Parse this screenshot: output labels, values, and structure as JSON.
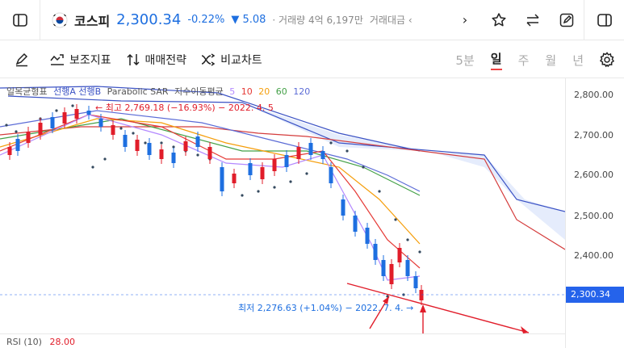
{
  "header": {
    "name": "코스피",
    "price": "2,300.34",
    "change_pct": "-0.22%",
    "change_abs": "▼ 5.08",
    "volume": "· 거래량 4억 6,197만",
    "amount": "거래대금 ‹",
    "more": "›"
  },
  "toolbar": {
    "indicators": "보조지표",
    "strategy": "매매전략",
    "compare": "비교차트"
  },
  "periods": [
    {
      "label": "5분"
    },
    {
      "label": "일",
      "selected": true
    },
    {
      "label": "주"
    },
    {
      "label": "월"
    },
    {
      "label": "년"
    }
  ],
  "legend": {
    "ichimoku": "일목균형표",
    "senkou": "선행A 선행B",
    "psar": "Parabolic SAR",
    "ma": "지수이동평균",
    "ma5": "5",
    "ma10": "10",
    "ma20": "20",
    "ma60": "60",
    "ma120": "120"
  },
  "annotations": {
    "high": "← 최고 2,769.18 (−16.93%) − 2022. 4. 5",
    "low": "최저 2,276.63 (+1.04%) − 2022. 7. 4. →"
  },
  "axis": {
    "ticks": [
      "2,800.00",
      "2,700.00",
      "2,600.00",
      "2,500.00",
      "2,400.00"
    ],
    "current": "2,300.34"
  },
  "rsi": {
    "label": "RSI (10)",
    "value": "28.00"
  },
  "colors": {
    "up": "#e11d2a",
    "down": "#1e6fe0",
    "ma5": "#b388ff",
    "ma10": "#e53935",
    "ma20": "#f59e0b",
    "ma60": "#43a047",
    "ma120": "#5b6bd6",
    "cloud": "#3b52c4",
    "psar": "#34495e",
    "arrow": "#e11d2a"
  }
}
